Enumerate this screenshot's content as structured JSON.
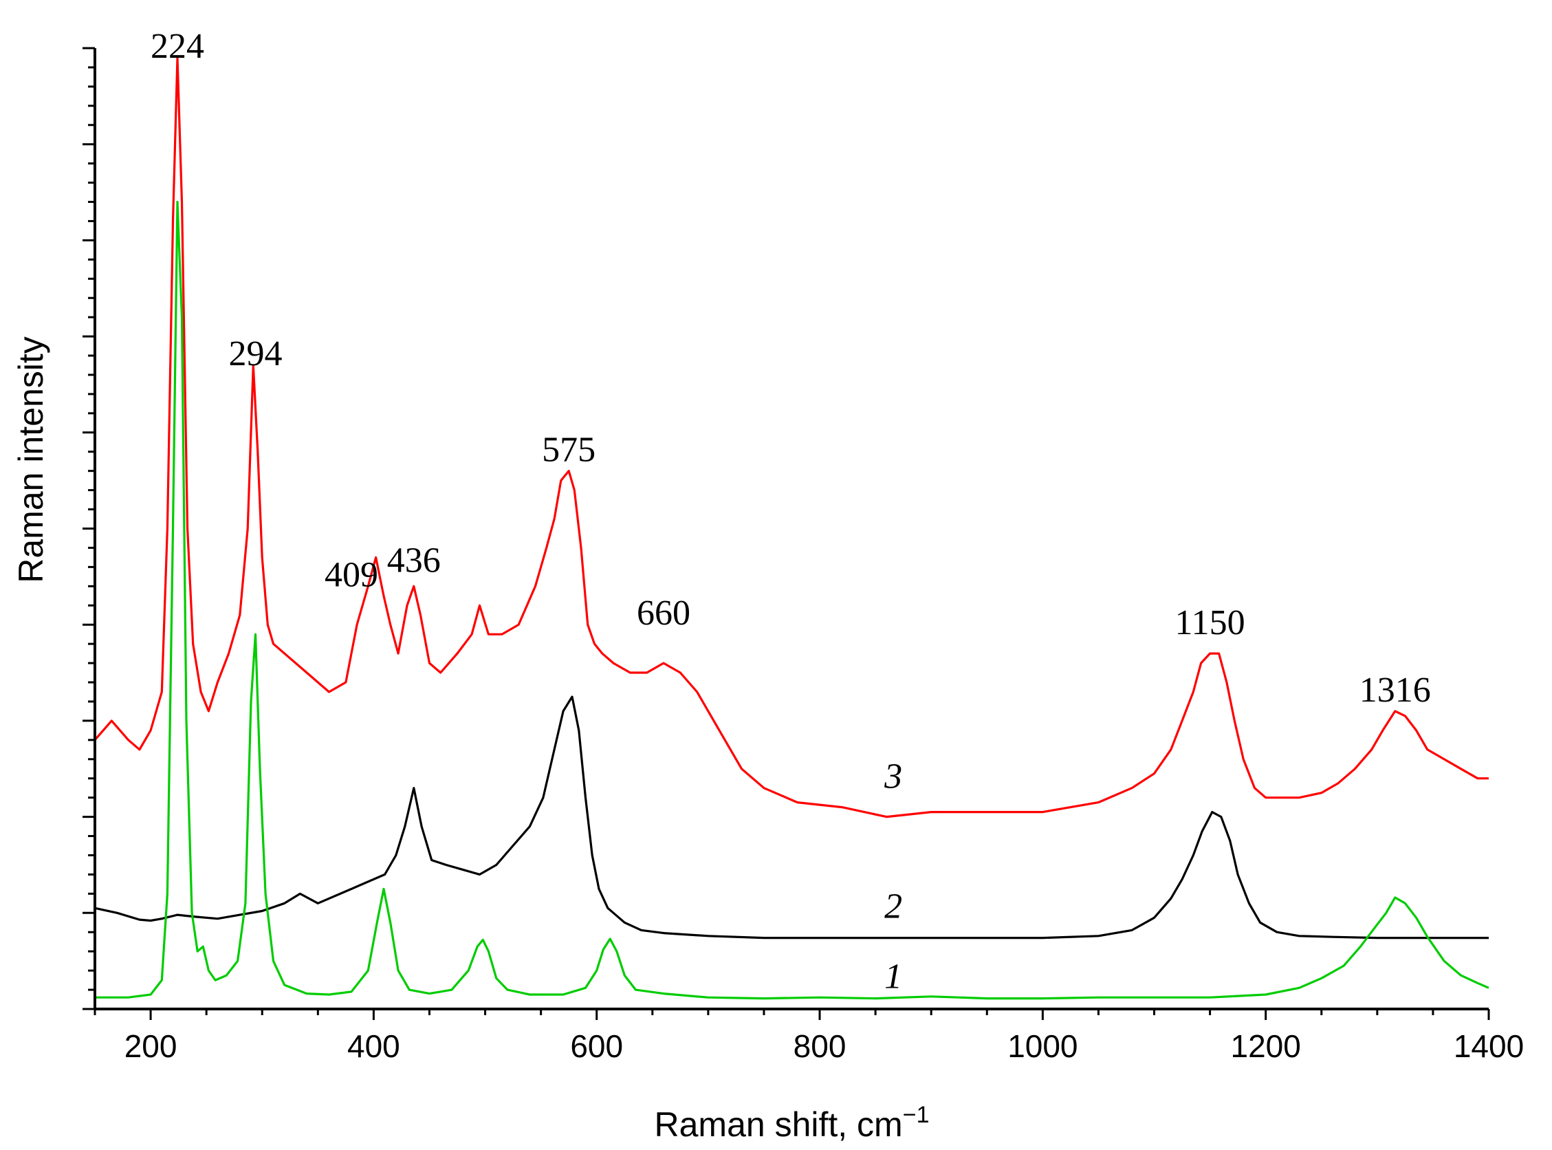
{
  "chart_data": {
    "type": "line",
    "xlabel": "Raman shift, cm",
    "xlabel_sup": "−1",
    "ylabel": "Raman intensity",
    "xlim": [
      150,
      1400
    ],
    "ylim": [
      0,
      100
    ],
    "x_ticks": [
      "200",
      "400",
      "600",
      "800",
      "1000",
      "1200",
      "1400"
    ],
    "x_tick_values": [
      200,
      400,
      600,
      800,
      1000,
      1200,
      1400
    ],
    "y_tick_labels": "none",
    "grid": false,
    "legend": "none (curves labeled inline)",
    "peak_labels": [
      {
        "text": "224",
        "x": 224,
        "y": 99
      },
      {
        "text": "294",
        "x": 294,
        "y": 67
      },
      {
        "text": "409",
        "x": 380,
        "y": 44
      },
      {
        "text": "436",
        "x": 436,
        "y": 45.5
      },
      {
        "text": "575",
        "x": 575,
        "y": 57
      },
      {
        "text": "660",
        "x": 660,
        "y": 40
      },
      {
        "text": "1150",
        "x": 1150,
        "y": 39
      },
      {
        "text": "1316",
        "x": 1316,
        "y": 32
      }
    ],
    "curve_labels": [
      {
        "text": "3",
        "x": 866,
        "y": 23
      },
      {
        "text": "2",
        "x": 866,
        "y": 9.5
      },
      {
        "text": "1",
        "x": 866,
        "y": 2.2
      }
    ],
    "series": [
      {
        "name": "3",
        "color": "#ff0000",
        "x": [
          150,
          165,
          180,
          190,
          200,
          210,
          215,
          220,
          224,
          228,
          233,
          238,
          245,
          252,
          260,
          270,
          280,
          287,
          292,
          296,
          300,
          305,
          310,
          320,
          340,
          360,
          375,
          385,
          395,
          402,
          409,
          415,
          422,
          430,
          436,
          442,
          450,
          460,
          475,
          488,
          495,
          503,
          515,
          530,
          545,
          555,
          562,
          568,
          575,
          580,
          586,
          592,
          598,
          605,
          615,
          630,
          645,
          660,
          675,
          690,
          710,
          730,
          750,
          780,
          820,
          860,
          900,
          950,
          1000,
          1050,
          1080,
          1100,
          1115,
          1125,
          1135,
          1142,
          1150,
          1158,
          1165,
          1172,
          1180,
          1190,
          1200,
          1215,
          1230,
          1250,
          1265,
          1280,
          1295,
          1305,
          1316,
          1325,
          1335,
          1345,
          1360,
          1375,
          1390,
          1400
        ],
        "y": [
          28,
          30,
          28,
          27,
          29,
          33,
          50,
          82,
          99,
          84,
          50,
          38,
          33,
          31,
          34,
          37,
          41,
          50,
          67,
          58,
          47,
          40,
          38,
          37,
          35,
          33,
          34,
          40,
          44,
          47,
          43,
          40,
          37,
          42,
          44,
          41,
          36,
          35,
          37,
          39,
          42,
          39,
          39,
          40,
          44,
          48,
          51,
          55,
          56,
          54,
          48,
          40,
          38,
          37,
          36,
          35,
          35,
          36,
          35,
          33,
          29,
          25,
          23,
          21.5,
          21,
          20,
          20.5,
          20.5,
          20.5,
          21.5,
          23,
          24.5,
          27,
          30,
          33,
          36,
          37,
          37,
          34,
          30,
          26,
          23,
          22,
          22,
          22,
          22.5,
          23.5,
          25,
          27,
          29,
          31,
          30.5,
          29,
          27,
          26,
          25,
          24,
          24
        ]
      },
      {
        "name": "2",
        "color": "#000000",
        "x": [
          150,
          170,
          190,
          200,
          210,
          224,
          240,
          260,
          280,
          300,
          320,
          334,
          350,
          370,
          390,
          410,
          420,
          428,
          436,
          443,
          452,
          465,
          480,
          495,
          510,
          525,
          540,
          552,
          562,
          570,
          578,
          584,
          590,
          596,
          602,
          610,
          625,
          640,
          660,
          700,
          750,
          800,
          900,
          1000,
          1050,
          1080,
          1100,
          1115,
          1125,
          1135,
          1143,
          1152,
          1160,
          1168,
          1175,
          1185,
          1195,
          1210,
          1230,
          1260,
          1300,
          1350,
          1400
        ],
        "y": [
          10.5,
          10,
          9.3,
          9.2,
          9.4,
          9.8,
          9.6,
          9.4,
          9.8,
          10.2,
          11,
          12,
          11,
          12,
          13,
          14,
          16,
          19,
          23,
          19,
          15.5,
          15,
          14.5,
          14,
          15,
          17,
          19,
          22,
          27,
          31,
          32.5,
          29,
          22,
          16,
          12.5,
          10.5,
          9,
          8.2,
          7.9,
          7.6,
          7.4,
          7.4,
          7.4,
          7.4,
          7.6,
          8.2,
          9.5,
          11.5,
          13.5,
          16,
          18.5,
          20.5,
          20,
          17.5,
          14,
          11,
          9,
          8,
          7.6,
          7.5,
          7.4,
          7.4,
          7.4
        ]
      },
      {
        "name": "1",
        "color": "#00cc00",
        "x": [
          150,
          180,
          200,
          210,
          215,
          220,
          224,
          228,
          232,
          237,
          242,
          247,
          252,
          258,
          268,
          278,
          285,
          290,
          294,
          298,
          303,
          310,
          320,
          340,
          360,
          380,
          395,
          403,
          409,
          415,
          422,
          432,
          450,
          470,
          485,
          493,
          498,
          503,
          510,
          520,
          540,
          570,
          590,
          600,
          606,
          612,
          618,
          625,
          635,
          660,
          700,
          750,
          800,
          850,
          900,
          950,
          1000,
          1050,
          1100,
          1150,
          1200,
          1230,
          1250,
          1270,
          1285,
          1298,
          1308,
          1316,
          1325,
          1335,
          1345,
          1360,
          1375,
          1390,
          1400
        ],
        "y": [
          1.2,
          1.2,
          1.5,
          3,
          12,
          50,
          84,
          72,
          30,
          10,
          6,
          6.5,
          4,
          3,
          3.5,
          5,
          11,
          32,
          39,
          25,
          12,
          5,
          2.5,
          1.6,
          1.5,
          1.8,
          4,
          9,
          12.5,
          9,
          4,
          2,
          1.6,
          2,
          4,
          6.5,
          7.2,
          6,
          3.2,
          2,
          1.5,
          1.5,
          2.2,
          4,
          6.2,
          7.3,
          6,
          3.5,
          2,
          1.6,
          1.2,
          1.1,
          1.2,
          1.1,
          1.3,
          1.1,
          1.1,
          1.2,
          1.2,
          1.2,
          1.5,
          2.2,
          3.2,
          4.5,
          6.5,
          8.5,
          10,
          11.6,
          11,
          9.5,
          7.5,
          5,
          3.5,
          2.7,
          2.2
        ]
      }
    ]
  }
}
